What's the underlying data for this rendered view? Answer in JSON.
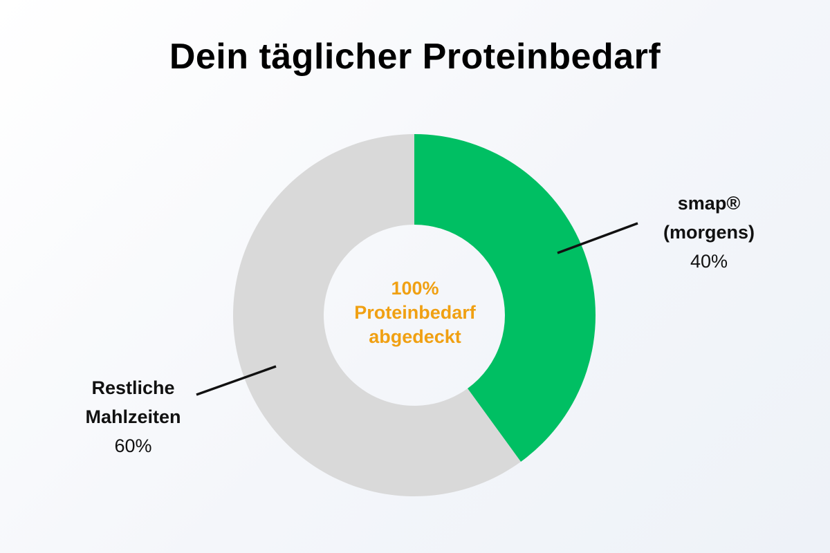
{
  "chart_data": {
    "type": "pie",
    "title": "Dein täglicher Proteinbedarf",
    "center_text": [
      "100%",
      "Proteinbedarf",
      "abgedeckt"
    ],
    "center_text_color": "#f0a012",
    "slices": [
      {
        "label_lines": [
          "smap®",
          "(morgens)"
        ],
        "value": 40,
        "value_label": "40%",
        "color": "#00bf63"
      },
      {
        "label_lines": [
          "Restliche",
          "Mahlzeiten"
        ],
        "value": 60,
        "value_label": "60%",
        "color": "#d9d9d9"
      }
    ]
  }
}
